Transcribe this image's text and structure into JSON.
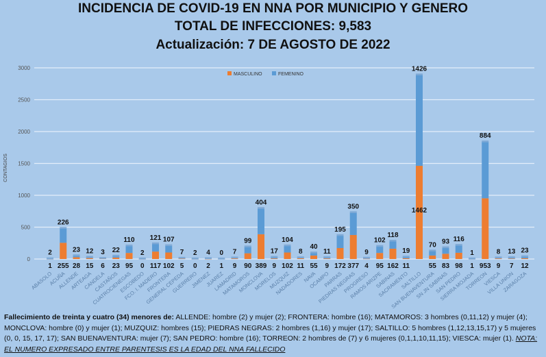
{
  "title": {
    "line1": "INCIDENCIA DE COVID-19 EN NNA POR MUNICIPIO Y GENERO",
    "line2": "TOTAL DE INFECCIONES: 9,583",
    "line3": "Actualización: 7 DE AGOSTO DE 2022"
  },
  "chart_data": {
    "type": "bar",
    "stacked": true,
    "ylabel": "CONTAGIOS",
    "ylim": [
      0,
      3000
    ],
    "yticks": [
      0,
      500,
      1000,
      1500,
      2000,
      2500,
      3000
    ],
    "grid": true,
    "legend": "top-center",
    "categories": [
      "ABASOLO",
      "ACUÑA",
      "ALLENDE",
      "ARTEAGA",
      "CANDELA",
      "CASTAÑOS",
      "CUATROCIENEGAS",
      "ESCOBEDO",
      "FCO. I. MADERO",
      "FRONTERA",
      "GENERAL CEPEDA",
      "GUERRERO",
      "JIMENEZ",
      "JUAREZ",
      "LAMADRID",
      "MATAMOROS",
      "MONCLOVA",
      "MORELOS",
      "MUZQUIZ",
      "NADADORES",
      "NAVA",
      "OCAMPO",
      "PARRAS",
      "PIEDRAS NEGRAS",
      "PROGRESO",
      "RAMOS ARIZPE",
      "SABINAS",
      "SACRAMENTO",
      "SALTILLO",
      "SAN BUENAVENTURA",
      "SN JN SABINAS",
      "SAN PEDRO",
      "SIERRA MOJADA",
      "TORREON",
      "VIESCA",
      "VILLA UNION",
      "ZARAGOZA"
    ],
    "series": [
      {
        "name": "MASCULINO",
        "color": "#ed7d31",
        "values": [
          1,
          255,
          28,
          15,
          6,
          23,
          95,
          0,
          117,
          102,
          5,
          0,
          2,
          1,
          9,
          90,
          389,
          9,
          102,
          11,
          55,
          9,
          172,
          377,
          4,
          95,
          162,
          11,
          1462,
          55,
          83,
          98,
          1,
          953,
          9,
          7,
          12
        ]
      },
      {
        "name": "FEMENINO",
        "color": "#5b9bd5",
        "values": [
          2,
          226,
          23,
          12,
          3,
          22,
          110,
          2,
          121,
          107,
          7,
          2,
          4,
          0,
          7,
          99,
          404,
          17,
          104,
          8,
          40,
          11,
          195,
          350,
          9,
          102,
          118,
          19,
          1426,
          70,
          93,
          116,
          1,
          884,
          8,
          13,
          23
        ]
      }
    ]
  },
  "note": {
    "bold": "Fallecimiento de treinta y cuatro (34) menores de:",
    "text": " ALLENDE: hombre (2) y mujer (2); FRONTERA: hombre (16); MATAMOROS: 3 hombres (0,11,12) y mujer (4); MONCLOVA:  hombre (0) y mujer (1); MUZQUIZ: hombres (15); PIEDRAS NEGRAS:  2 hombres (1,16) y mujer (17); SALTILLO: 5 hombres (1,12,13,15,17) y 5 mujeres (0, 0, 15, 17, 17); SAN BUENAVENTURA: mujer (7); SAN PEDRO: hombre (16); TORREON: 2 hombres de (7) y  6 mujeres (0,1,1,10,11,15); VIESCA: mujer (1).",
    "nota": "NOTA: EL NUMERO EXPRESADO ENTRE PARENTESIS ES LA EDAD DEL NNA FALLECIDO"
  }
}
